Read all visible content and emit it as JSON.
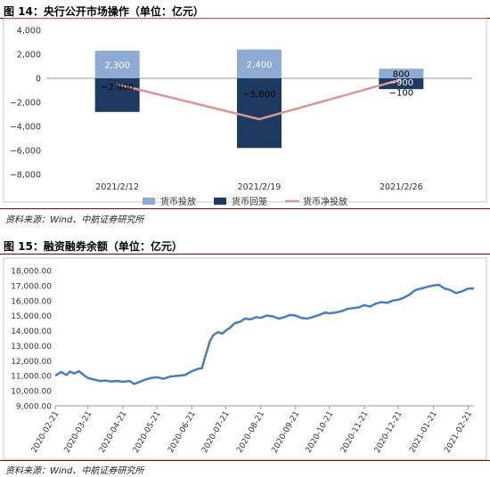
{
  "figures": [
    {
      "title": "图 14：央行公开市场操作（单位：亿元）",
      "source": "资料来源：Wind、中航证券研究所"
    },
    {
      "title": "图 15：融资融券余额（单位：亿元）",
      "source": "资料来源：Wind、中航证券研究所"
    }
  ],
  "chart_data": [
    {
      "type": "bar",
      "title": "",
      "categories": [
        "2021/2/12",
        "2021/2/19",
        "2021/2/26"
      ],
      "ylim": [
        -8000,
        4000
      ],
      "y_ticks": [
        4000,
        2000,
        0,
        -2000,
        -4000,
        -6000,
        -8000
      ],
      "y_tick_labels": [
        "4,000",
        "2,000",
        "0",
        "−2,000",
        "−4,000",
        "−6,000",
        "−8,000"
      ],
      "legend_position": "bottom",
      "grid": false,
      "series": [
        {
          "name": "货币投放",
          "kind": "bar",
          "color": "#8eabd3",
          "values": [
            2300,
            2400,
            800
          ],
          "labels": [
            "2,300",
            "2,400",
            "800"
          ]
        },
        {
          "name": "货币回笼",
          "kind": "bar",
          "color": "#1f3a60",
          "values": [
            -2800,
            -5800,
            -900
          ],
          "labels": [
            "−2,800",
            "−5,800",
            "−900"
          ]
        },
        {
          "name": "货币净投放",
          "kind": "line",
          "color": "#d99694",
          "values": [
            -500,
            -3400,
            -100
          ],
          "labels": [
            "",
            "",
            "−100"
          ]
        }
      ]
    },
    {
      "type": "line",
      "title": "",
      "ylim": [
        9000,
        18000
      ],
      "y_ticks": [
        9000,
        10000,
        11000,
        12000,
        13000,
        14000,
        15000,
        16000,
        17000,
        18000
      ],
      "y_tick_labels": [
        "9,000.00",
        "10,000.00",
        "11,000.00",
        "12,000.00",
        "13,000.00",
        "14,000.00",
        "15,000.00",
        "16,000.00",
        "17,000.00",
        "18,000.00"
      ],
      "x_tick_labels": [
        "2020-02-21",
        "2020-03-21",
        "2020-04-21",
        "2020-05-21",
        "2020-06-21",
        "2020-07-21",
        "2020-08-21",
        "2020-09-21",
        "2020-10-21",
        "2020-11-21",
        "2020-12-21",
        "2021-01-21",
        "2021-02-21"
      ],
      "grid": false,
      "series": [
        {
          "name": "融资融券余额",
          "color": "#4a7ebb",
          "x": [
            "2020-02-21",
            "2020-02-26",
            "2020-03-02",
            "2020-03-05",
            "2020-03-09",
            "2020-03-13",
            "2020-03-18",
            "2020-03-21",
            "2020-03-26",
            "2020-04-01",
            "2020-04-06",
            "2020-04-10",
            "2020-04-16",
            "2020-04-21",
            "2020-04-27",
            "2020-05-01",
            "2020-05-06",
            "2020-05-11",
            "2020-05-16",
            "2020-05-21",
            "2020-05-27",
            "2020-06-02",
            "2020-06-09",
            "2020-06-15",
            "2020-06-21",
            "2020-06-26",
            "2020-06-30",
            "2020-07-03",
            "2020-07-07",
            "2020-07-10",
            "2020-07-14",
            "2020-07-18",
            "2020-07-21",
            "2020-07-25",
            "2020-07-29",
            "2020-08-03",
            "2020-08-07",
            "2020-08-12",
            "2020-08-17",
            "2020-08-21",
            "2020-08-26",
            "2020-09-01",
            "2020-09-06",
            "2020-09-11",
            "2020-09-16",
            "2020-09-21",
            "2020-09-26",
            "2020-10-01",
            "2020-10-06",
            "2020-10-12",
            "2020-10-17",
            "2020-10-21",
            "2020-10-26",
            "2020-11-01",
            "2020-11-06",
            "2020-11-11",
            "2020-11-16",
            "2020-11-21",
            "2020-11-26",
            "2020-12-01",
            "2020-12-06",
            "2020-12-11",
            "2020-12-16",
            "2020-12-21",
            "2020-12-26",
            "2020-12-31",
            "2021-01-05",
            "2021-01-10",
            "2021-01-15",
            "2021-01-21",
            "2021-01-26",
            "2021-01-31",
            "2021-02-05",
            "2021-02-10",
            "2021-02-15",
            "2021-02-21",
            "2021-02-26"
          ],
          "values": [
            11000,
            11250,
            11050,
            11280,
            11150,
            11300,
            11000,
            10850,
            10750,
            10650,
            10680,
            10620,
            10650,
            10600,
            10650,
            10450,
            10600,
            10750,
            10850,
            10900,
            10800,
            10950,
            11000,
            11050,
            11300,
            11450,
            11500,
            12300,
            13300,
            13700,
            13900,
            13800,
            14000,
            14200,
            14500,
            14600,
            14800,
            14750,
            14900,
            14850,
            15000,
            14950,
            14800,
            14900,
            15050,
            15000,
            14850,
            14800,
            14900,
            15050,
            15200,
            15150,
            15200,
            15300,
            15450,
            15500,
            15550,
            15700,
            15600,
            15800,
            15900,
            15850,
            16000,
            16050,
            16200,
            16400,
            16700,
            16800,
            16900,
            17000,
            17050,
            16800,
            16700,
            16500,
            16600,
            16800,
            16800
          ]
        }
      ]
    }
  ]
}
